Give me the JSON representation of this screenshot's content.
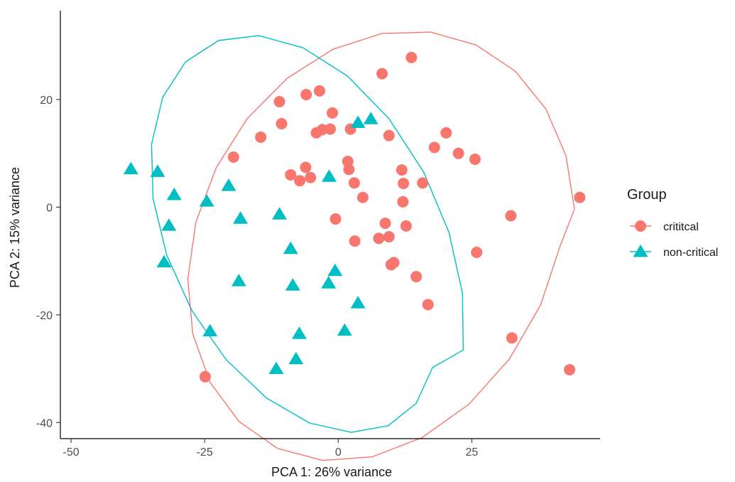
{
  "chart_data": {
    "type": "scatter",
    "xlabel": "PCA 1: 26% variance",
    "ylabel": "PCA 2: 15% variance",
    "xlim": [
      -52,
      49
    ],
    "ylim": [
      -43,
      36.5
    ],
    "x_ticks": [
      -50,
      -25,
      0,
      25
    ],
    "y_ticks": [
      -40,
      -20,
      0,
      20
    ],
    "x_tick_labels": [
      "-50",
      "-25",
      "0",
      "25"
    ],
    "y_tick_labels": [
      "-40",
      "-20",
      "0",
      "20"
    ],
    "grid": false,
    "legend": {
      "title": "Group",
      "position": "right"
    },
    "series": [
      {
        "name": "crititcal",
        "marker": "circle",
        "color": "#F8766D",
        "points": [
          [
            13.7,
            27.8
          ],
          [
            8.2,
            24.8
          ],
          [
            -6,
            20.9
          ],
          [
            -3.5,
            21.6
          ],
          [
            -11,
            19.6
          ],
          [
            -1.1,
            17.5
          ],
          [
            -10.6,
            15.5
          ],
          [
            -14.5,
            13
          ],
          [
            -4.1,
            13.8
          ],
          [
            -3,
            14.4
          ],
          [
            -1.5,
            14.5
          ],
          [
            2.3,
            14.5
          ],
          [
            9.5,
            13.3
          ],
          [
            20.2,
            13.8
          ],
          [
            18,
            11.1
          ],
          [
            22.5,
            10
          ],
          [
            25.6,
            8.9
          ],
          [
            -19.6,
            9.3
          ],
          [
            1.8,
            8.5
          ],
          [
            11.9,
            6.9
          ],
          [
            -6.1,
            7.4
          ],
          [
            2,
            7
          ],
          [
            -8.9,
            6
          ],
          [
            -5.2,
            5.5
          ],
          [
            -7.2,
            4.9
          ],
          [
            3,
            4.5
          ],
          [
            12.2,
            4.4
          ],
          [
            15.8,
            4.5
          ],
          [
            4.6,
            1.8
          ],
          [
            12.1,
            1
          ],
          [
            45.2,
            1.8
          ],
          [
            32.3,
            -1.6
          ],
          [
            -0.5,
            -2.2
          ],
          [
            8.8,
            -3
          ],
          [
            12.7,
            -3.5
          ],
          [
            7.6,
            -5.8
          ],
          [
            9.5,
            -5.5
          ],
          [
            3.1,
            -6.3
          ],
          [
            25.9,
            -8.4
          ],
          [
            10.4,
            -10.3
          ],
          [
            9.9,
            -10.7
          ],
          [
            14.6,
            -12.9
          ],
          [
            16.8,
            -18.1
          ],
          [
            32.5,
            -24.3
          ],
          [
            -24.9,
            -31.5
          ],
          [
            43.3,
            -30.2
          ]
        ]
      },
      {
        "name": "non-critical",
        "marker": "triangle",
        "color": "#00BFC4",
        "points": [
          [
            6.1,
            16.4
          ],
          [
            3.7,
            15.7
          ],
          [
            -38.8,
            7.1
          ],
          [
            -33.8,
            6.6
          ],
          [
            -1.7,
            5.7
          ],
          [
            -20.5,
            4
          ],
          [
            -30.7,
            2.3
          ],
          [
            -24.6,
            1.1
          ],
          [
            -11,
            -1.3
          ],
          [
            -18.3,
            -2.1
          ],
          [
            -31.7,
            -3.4
          ],
          [
            -8.9,
            -7.7
          ],
          [
            -32.6,
            -10.2
          ],
          [
            -0.6,
            -11.8
          ],
          [
            -18.6,
            -13.7
          ],
          [
            -8.5,
            -14.5
          ],
          [
            -1.8,
            -14.1
          ],
          [
            3.7,
            -17.8
          ],
          [
            -24,
            -23
          ],
          [
            -7.3,
            -23.5
          ],
          [
            1.2,
            -22.9
          ],
          [
            -11.6,
            -30
          ],
          [
            -7.9,
            -28.2
          ]
        ]
      }
    ],
    "ellipses": [
      {
        "series": "crititcal",
        "color": "#F8766D",
        "path": [
          [
            44.2,
            -0.37
          ],
          [
            42.63,
            9.49
          ],
          [
            38.87,
            18.22
          ],
          [
            33.13,
            25.26
          ],
          [
            25.77,
            30.13
          ],
          [
            17.24,
            32.52
          ],
          [
            8.13,
            32.25
          ],
          [
            -0.99,
            29.33
          ],
          [
            -9.57,
            23.94
          ],
          [
            -17.03,
            16.44
          ],
          [
            -22.86,
            7.3
          ],
          [
            -26.66,
            -2.86
          ],
          [
            -28.15,
            -13.38
          ],
          [
            -27.23,
            -23.53
          ],
          [
            -23.96,
            -32.57
          ],
          [
            -18.55,
            -39.85
          ],
          [
            -11.36,
            -44.81
          ],
          [
            -2.86,
            -47.05
          ],
          [
            6.36,
            -46.38
          ],
          [
            15.68,
            -42.82
          ],
          [
            24.45,
            -36.62
          ],
          [
            32.04,
            -28.2
          ],
          [
            37.88,
            -18.16
          ],
          [
            41.54,
            -7.19
          ]
        ],
        "note_trace": "ellipse outline traced from the picture"
      },
      {
        "series": "non-critical",
        "color": "#00BFC4",
        "path": [
          [
            17.65,
            -29.8
          ],
          [
            14.58,
            -36.46
          ],
          [
            9.34,
            -40.59
          ],
          [
            2.45,
            -41.84
          ],
          [
            -5.38,
            -40.09
          ],
          [
            -13.41,
            -35.47
          ],
          [
            -20.95,
            -28.35
          ],
          [
            -27.35,
            -19.3
          ],
          [
            -32.05,
            -9.04
          ],
          [
            -34.66,
            1.58
          ],
          [
            -34.94,
            11.68
          ],
          [
            -32.85,
            20.4
          ],
          [
            -28.56,
            27
          ],
          [
            -22.41,
            30.95
          ],
          [
            -14.88,
            31.86
          ],
          [
            -6.6,
            29.61
          ],
          [
            1.74,
            24.35
          ],
          [
            9.49,
            16.45
          ],
          [
            16,
            6.49
          ],
          [
            20.73,
            -4.71
          ],
          [
            23.26,
            -16.03
          ],
          [
            23.39,
            -26.53
          ]
        ],
        "note_trace": "ellipse outline traced from the picture"
      }
    ]
  }
}
